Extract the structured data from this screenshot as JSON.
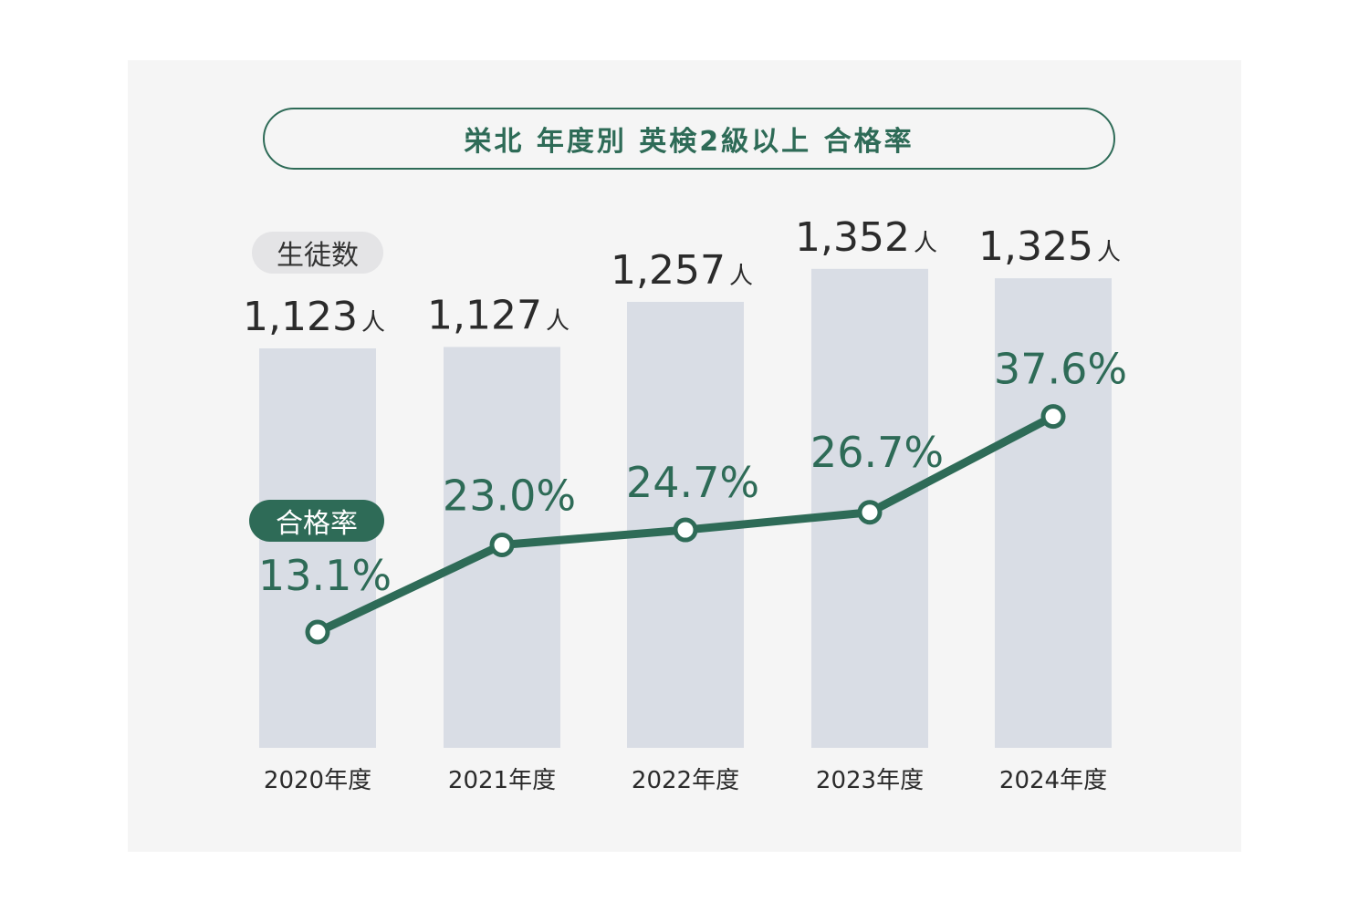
{
  "title": "栄北 年度別 英検2級以上 合格率",
  "legend": {
    "students_label": "生徒数",
    "rate_label": "合格率"
  },
  "colors": {
    "bar": "#d9dde5",
    "line": "#2e6b57",
    "count_text": "#2b2b2b",
    "rate_text": "#2e6b57",
    "panel": "#f5f5f5"
  },
  "chart_data": {
    "type": "bar",
    "categories": [
      "2020年度",
      "2021年度",
      "2022年度",
      "2023年度",
      "2024年度"
    ],
    "series": [
      {
        "name": "生徒数",
        "type": "bar",
        "unit": "人",
        "values": [
          1123,
          1127,
          1257,
          1352,
          1325
        ],
        "labels": [
          "1,123",
          "1,127",
          "1,257",
          "1,352",
          "1,325"
        ]
      },
      {
        "name": "合格率",
        "type": "line",
        "unit": "%",
        "values": [
          13.1,
          23.0,
          24.7,
          26.7,
          37.6
        ],
        "labels": [
          "13.1%",
          "23.0%",
          "24.7%",
          "26.7%",
          "37.6%"
        ]
      }
    ],
    "title": "栄北 年度別 英検2級以上 合格率",
    "xlabel": "",
    "ylabel": "",
    "grid": false
  }
}
